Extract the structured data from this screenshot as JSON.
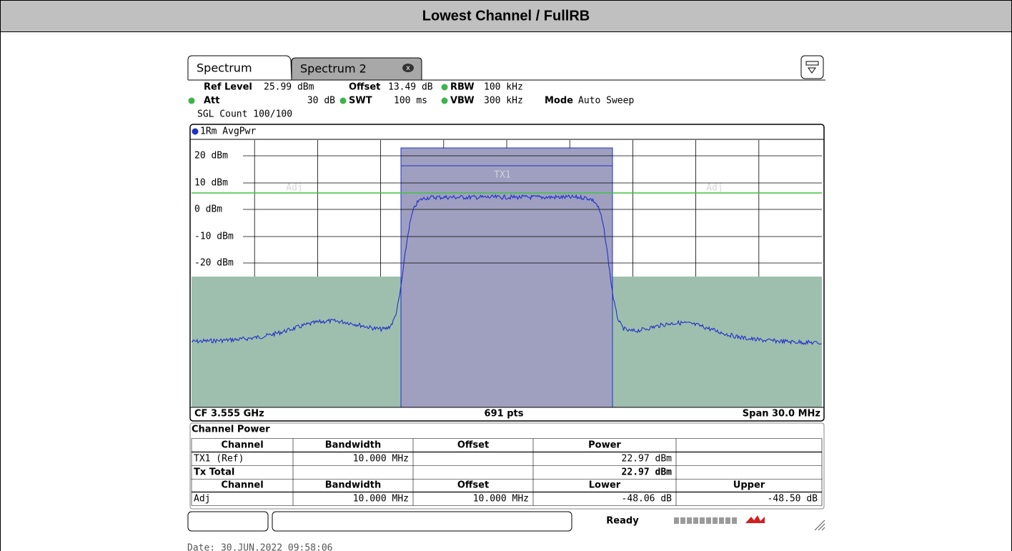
{
  "header": {
    "title": "Lowest Channel / FullRB"
  },
  "tabs": [
    "Spectrum",
    "Spectrum 2"
  ],
  "settings": {
    "ref_level_label": "Ref Level",
    "ref_level": "25.99 dBm",
    "offset_label": "Offset",
    "offset": "13.49 dB",
    "rbw_label": "RBW",
    "rbw": "100 kHz",
    "att_label": "Att",
    "att": "30 dB",
    "swt_label": "SWT",
    "swt": "100 ms",
    "vbw_label": "VBW",
    "vbw": "300 kHz",
    "mode_label": "Mode",
    "mode": "Auto Sweep",
    "sgl_count": "SGL Count 100/100"
  },
  "trace_label": "1Rm AvgPwr",
  "y_labels": [
    "20 dBm",
    "10 dBm",
    "0 dBm",
    "-10 dBm",
    "-20 dBm"
  ],
  "region_labels": {
    "tx": "TX1",
    "adj_left": "Adj",
    "adj_right": "Adj"
  },
  "footer": {
    "cf": "CF 3.555 GHz",
    "points": "691 pts",
    "span": "Span 30.0 MHz"
  },
  "table": {
    "title": "Channel Power",
    "rows": [
      {
        "channel": "Channel",
        "bandwidth": "Bandwidth",
        "offset": "Offset",
        "power": "Power"
      },
      {
        "channel": "TX1 (Ref)",
        "bandwidth": "10.000 MHz",
        "power": "22.97 dBm"
      },
      {
        "channel": "Tx Total",
        "power": "22.97 dBm"
      },
      {
        "channel": "Channel",
        "bandwidth": "Bandwidth",
        "offset": "Offset",
        "lower": "Lower",
        "upper": "Upper"
      },
      {
        "channel": "Adj",
        "bandwidth": "10.000 MHz",
        "offset": "10.000 MHz",
        "lower": "-48.06 dB",
        "upper": "-48.50 dB"
      }
    ]
  },
  "status": "Ready",
  "date": "Date: 30.JUN.2022  09:58:06"
}
